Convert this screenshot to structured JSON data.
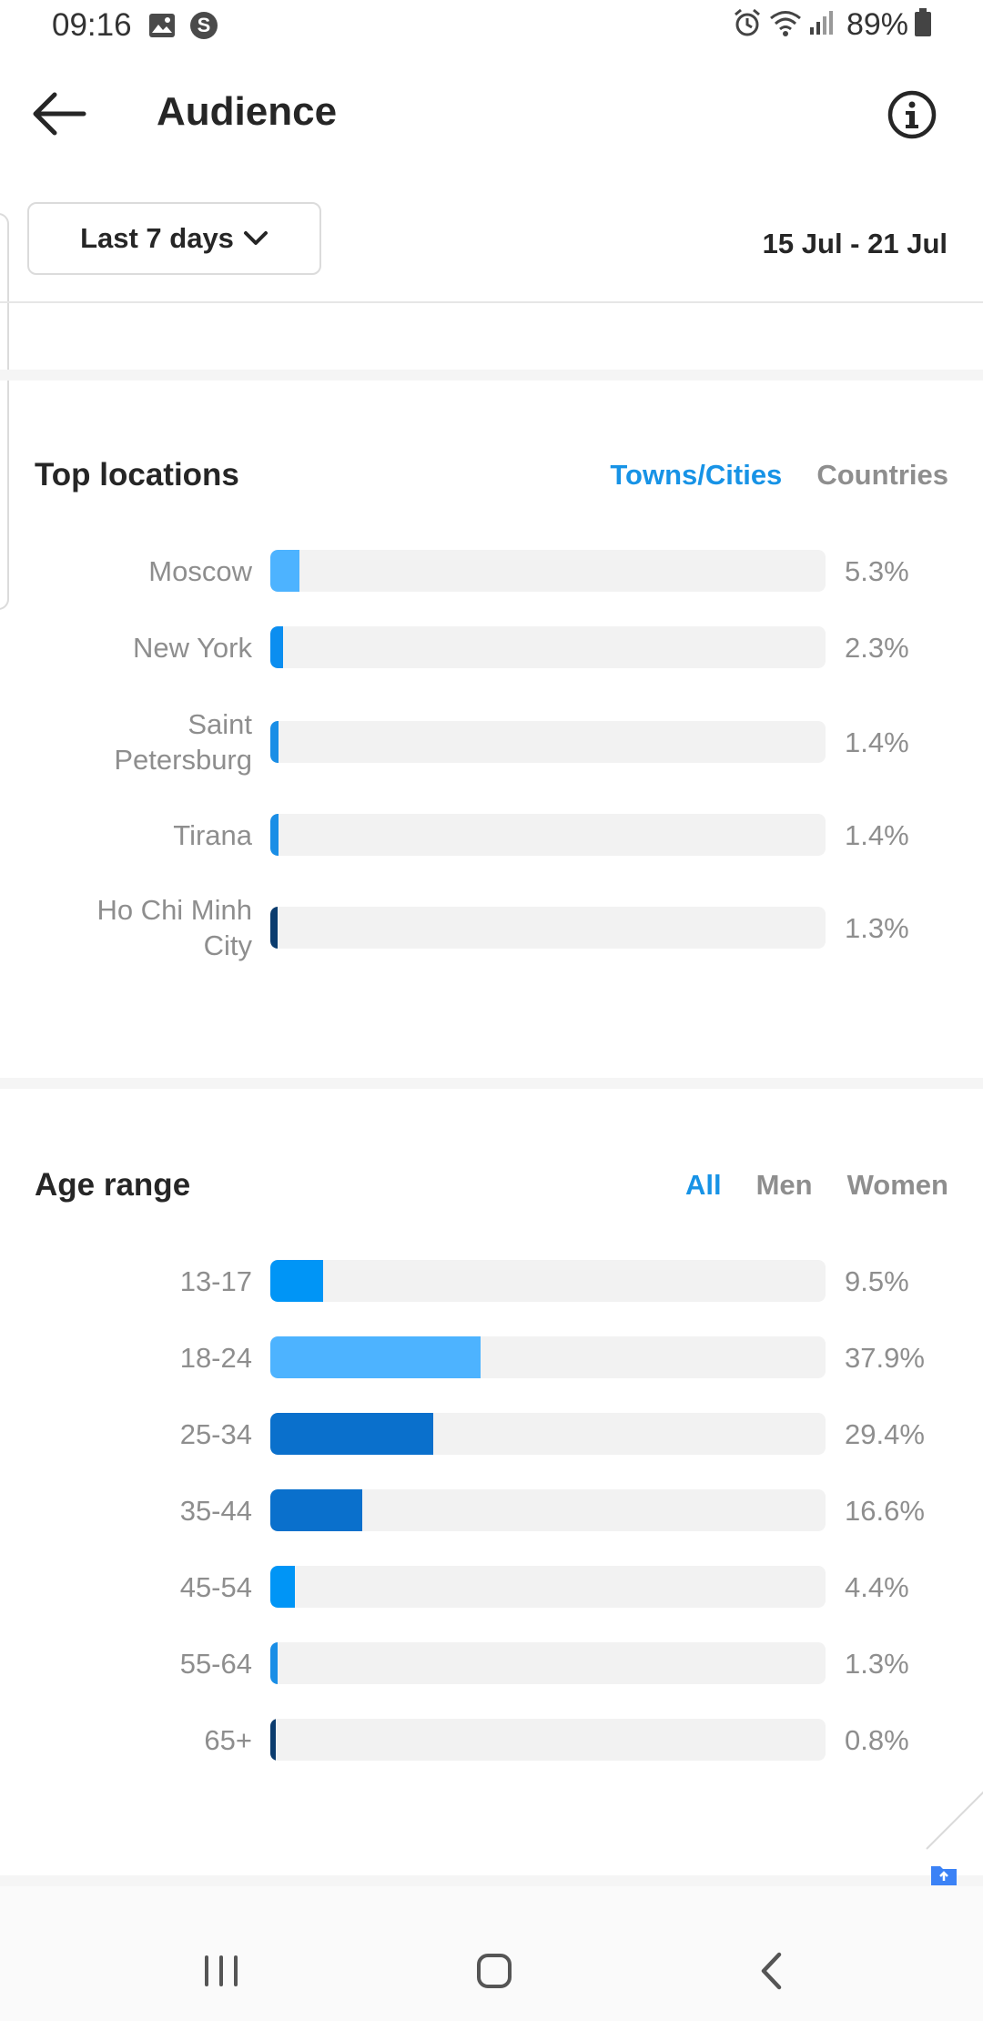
{
  "status_bar": {
    "time": "09:16",
    "battery": "89%"
  },
  "header": {
    "title": "Audience"
  },
  "filter": {
    "range_label": "Last 7 days",
    "date_range": "15 Jul - 21 Jul"
  },
  "top_locations": {
    "title": "Top locations",
    "tabs": [
      {
        "label": "Towns/Cities",
        "active": true
      },
      {
        "label": "Countries",
        "active": false
      }
    ],
    "rows": [
      {
        "label": "Moscow",
        "value": "5.3%",
        "percent": 5.3,
        "color": "#4db3ff"
      },
      {
        "label": "New York",
        "value": "2.3%",
        "percent": 2.3,
        "color": "#0b8ef0"
      },
      {
        "label": "Saint Petersburg",
        "value": "1.4%",
        "percent": 1.4,
        "color": "#1a8ee6"
      },
      {
        "label": "Tirana",
        "value": "1.4%",
        "percent": 1.4,
        "color": "#1a8ee6"
      },
      {
        "label": "Ho Chi Minh City",
        "value": "1.3%",
        "percent": 1.3,
        "color": "#0b3c6e"
      }
    ]
  },
  "age_range": {
    "title": "Age range",
    "tabs": [
      {
        "label": "All",
        "active": true
      },
      {
        "label": "Men",
        "active": false
      },
      {
        "label": "Women",
        "active": false
      }
    ],
    "rows": [
      {
        "label": "13-17",
        "value": "9.5%",
        "percent": 9.5,
        "color": "#0095f6"
      },
      {
        "label": "18-24",
        "value": "37.9%",
        "percent": 37.9,
        "color": "#4db3ff"
      },
      {
        "label": "25-34",
        "value": "29.4%",
        "percent": 29.4,
        "color": "#0a70cc"
      },
      {
        "label": "35-44",
        "value": "16.6%",
        "percent": 16.6,
        "color": "#0a70cc"
      },
      {
        "label": "45-54",
        "value": "4.4%",
        "percent": 4.4,
        "color": "#0095f6"
      },
      {
        "label": "55-64",
        "value": "1.3%",
        "percent": 1.3,
        "color": "#1a8ee6"
      },
      {
        "label": "65+",
        "value": "0.8%",
        "percent": 0.8,
        "color": "#0b3c6e"
      }
    ]
  }
}
